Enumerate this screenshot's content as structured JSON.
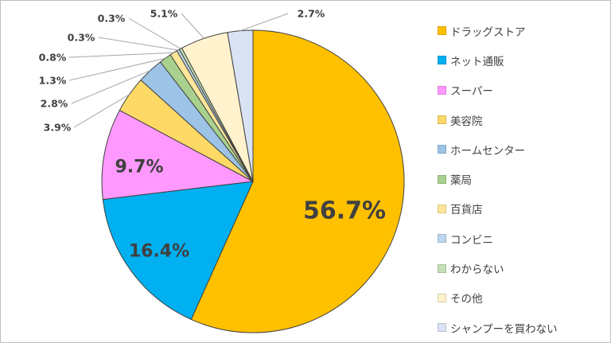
{
  "chart_data": {
    "type": "pie",
    "title": "",
    "legend_position": "right",
    "categories": [
      "ドラッグストア",
      "ネット通販",
      "スーパー",
      "美容院",
      "ホームセンター",
      "薬局",
      "百貨店",
      "コンビニ",
      "わからない",
      "その他",
      "シャンプーを買わない"
    ],
    "values": [
      56.7,
      16.4,
      9.7,
      3.9,
      2.8,
      1.3,
      0.8,
      0.3,
      0.3,
      5.1,
      2.7
    ],
    "labels": [
      "56.7%",
      "16.4%",
      "9.7%",
      "3.9%",
      "2.8%",
      "1.3%",
      "0.8%",
      "0.3%",
      "0.3%",
      "5.1%",
      "2.7%"
    ],
    "colors": [
      "#FFC000",
      "#00B0F0",
      "#FF99FF",
      "#FFD966",
      "#9DC3E6",
      "#A9D18E",
      "#FFE699",
      "#BDD7EE",
      "#C5E0B4",
      "#FFF2CC",
      "#DAE3F3"
    ]
  }
}
